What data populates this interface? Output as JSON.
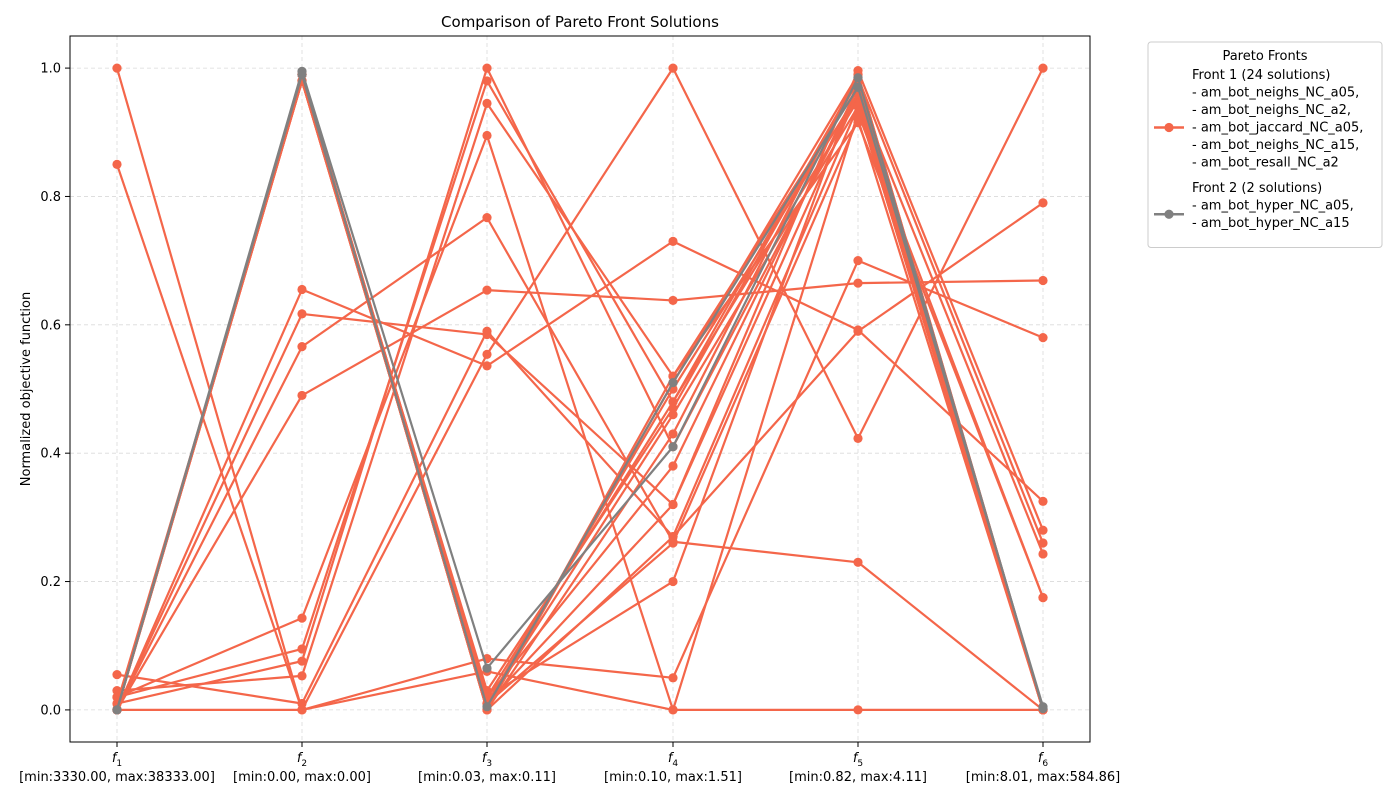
{
  "chart_data": {
    "type": "line",
    "title": "Comparison of Pareto Front Solutions",
    "ylabel": "Normalized objective function",
    "ylim": [
      -0.05,
      1.05
    ],
    "yticks": [
      "0.0",
      "0.2",
      "0.4",
      "0.6",
      "0.8",
      "1.0"
    ],
    "ytick_values": [
      0.0,
      0.2,
      0.4,
      0.6,
      0.8,
      1.0
    ],
    "x_ticks": [
      {
        "base": "f",
        "sub": "1",
        "range": "[min:3330.00, max:38333.00]"
      },
      {
        "base": "f",
        "sub": "2",
        "range": "[min:0.00, max:0.00]"
      },
      {
        "base": "f",
        "sub": "3",
        "range": "[min:0.03, max:0.11]"
      },
      {
        "base": "f",
        "sub": "4",
        "range": "[min:0.10, max:1.51]"
      },
      {
        "base": "f",
        "sub": "5",
        "range": "[min:0.82, max:4.11]"
      },
      {
        "base": "f",
        "sub": "6",
        "range": "[min:8.01, max:584.86]"
      }
    ],
    "grid": true,
    "legend": {
      "title": "Pareto Fronts",
      "placement": "outside-top-right",
      "entries": [
        {
          "lines": [
            "Front 1 (24 solutions)",
            "- am_bot_neighs_NC_a05,",
            "- am_bot_neighs_NC_a2,",
            "- am_bot_jaccard_NC_a05,",
            "- am_bot_neighs_NC_a15,",
            "- am_bot_resall_NC_a2"
          ],
          "color": "#f4664a"
        },
        {
          "lines": [
            "Front 2 (2 solutions)",
            "- am_bot_hyper_NC_a05,",
            "- am_bot_hyper_NC_a15"
          ],
          "color": "#808080"
        }
      ]
    },
    "series": [
      {
        "front": 1,
        "color": "#f4664a",
        "values": [
          0.0,
          0.99,
          0.0,
          0.52,
          0.97,
          0.0
        ]
      },
      {
        "front": 1,
        "color": "#f4664a",
        "values": [
          0.0,
          0.98,
          0.01,
          0.5,
          0.96,
          0.0
        ]
      },
      {
        "front": 1,
        "color": "#f4664a",
        "values": [
          0.0,
          0.99,
          0.02,
          0.48,
          0.95,
          0.0
        ]
      },
      {
        "front": 1,
        "color": "#f4664a",
        "values": [
          0.0,
          0.98,
          0.03,
          0.47,
          0.98,
          0.0
        ]
      },
      {
        "front": 1,
        "color": "#f4664a",
        "values": [
          0.01,
          0.98,
          0.01,
          0.46,
          0.94,
          0.0
        ]
      },
      {
        "front": 1,
        "color": "#f4664a",
        "values": [
          0.0,
          0.99,
          0.0,
          0.51,
          0.99,
          0.0
        ]
      },
      {
        "front": 1,
        "color": "#f4664a",
        "values": [
          0.0,
          0.99,
          0.0,
          0.43,
          0.99,
          0.0
        ]
      },
      {
        "front": 1,
        "color": "#f4664a",
        "values": [
          0.0,
          0.99,
          0.02,
          0.38,
          0.97,
          0.0
        ]
      },
      {
        "front": 1,
        "color": "#f4664a",
        "values": [
          0.0,
          0.99,
          0.01,
          0.32,
          0.96,
          0.0
        ]
      },
      {
        "front": 1,
        "color": "#f4664a",
        "values": [
          0.0,
          0.99,
          0.0,
          0.27,
          0.94,
          0.0
        ]
      },
      {
        "front": 1,
        "color": "#f4664a",
        "values": [
          0.0,
          0.98,
          0.01,
          0.26,
          0.92,
          0.0
        ]
      },
      {
        "front": 1,
        "color": "#f4664a",
        "values": [
          0.0,
          0.98,
          0.02,
          0.2,
          0.98,
          0.0
        ]
      },
      {
        "front": 1,
        "color": "#f4664a",
        "values": [
          1.0,
          0.0,
          0.08,
          0.05,
          0.7,
          0.58
        ]
      },
      {
        "front": 1,
        "color": "#f4664a",
        "values": [
          0.85,
          0.0,
          0.06,
          0.0,
          0.0,
          0.0
        ]
      },
      {
        "front": 1,
        "color": "#f4664a",
        "values": [
          0.055,
          0.01,
          0.59,
          0.27,
          0.59,
          0.79
        ]
      },
      {
        "front": 1,
        "color": "#f4664a",
        "values": [
          0.03,
          0.053,
          0.945,
          0.52,
          0.915,
          0.175
        ]
      },
      {
        "front": 1,
        "color": "#f4664a",
        "values": [
          0.02,
          0.095,
          0.98,
          0.48,
          0.985,
          0.26
        ]
      },
      {
        "front": 1,
        "color": "#f4664a",
        "values": [
          0.02,
          0.143,
          0.895,
          0.0,
          0.93,
          0.175
        ]
      },
      {
        "front": 1,
        "color": "#f4664a",
        "values": [
          0.01,
          0.076,
          1.0,
          0.41,
          0.96,
          0.243
        ]
      },
      {
        "front": 1,
        "color": "#f4664a",
        "values": [
          0.0,
          0.655,
          0.536,
          0.73,
          0.592,
          0.325
        ]
      },
      {
        "front": 1,
        "color": "#f4664a",
        "values": [
          0.0,
          0.617,
          0.585,
          0.32,
          0.996,
          0.28
        ]
      },
      {
        "front": 1,
        "color": "#f4664a",
        "values": [
          0.0,
          0.566,
          0.767,
          0.262,
          0.23,
          0.0
        ]
      },
      {
        "front": 1,
        "color": "#f4664a",
        "values": [
          0.0,
          0.49,
          0.654,
          0.638,
          0.665,
          0.669
        ]
      },
      {
        "front": 1,
        "color": "#f4664a",
        "values": [
          0.0,
          0.0,
          0.554,
          1.0,
          0.423,
          1.0
        ]
      },
      {
        "front": 2,
        "color": "#808080",
        "values": [
          0.0,
          0.995,
          0.065,
          0.41,
          0.985,
          0.002
        ]
      },
      {
        "front": 2,
        "color": "#808080",
        "values": [
          0.0,
          0.99,
          0.005,
          0.51,
          0.97,
          0.005
        ]
      }
    ]
  }
}
